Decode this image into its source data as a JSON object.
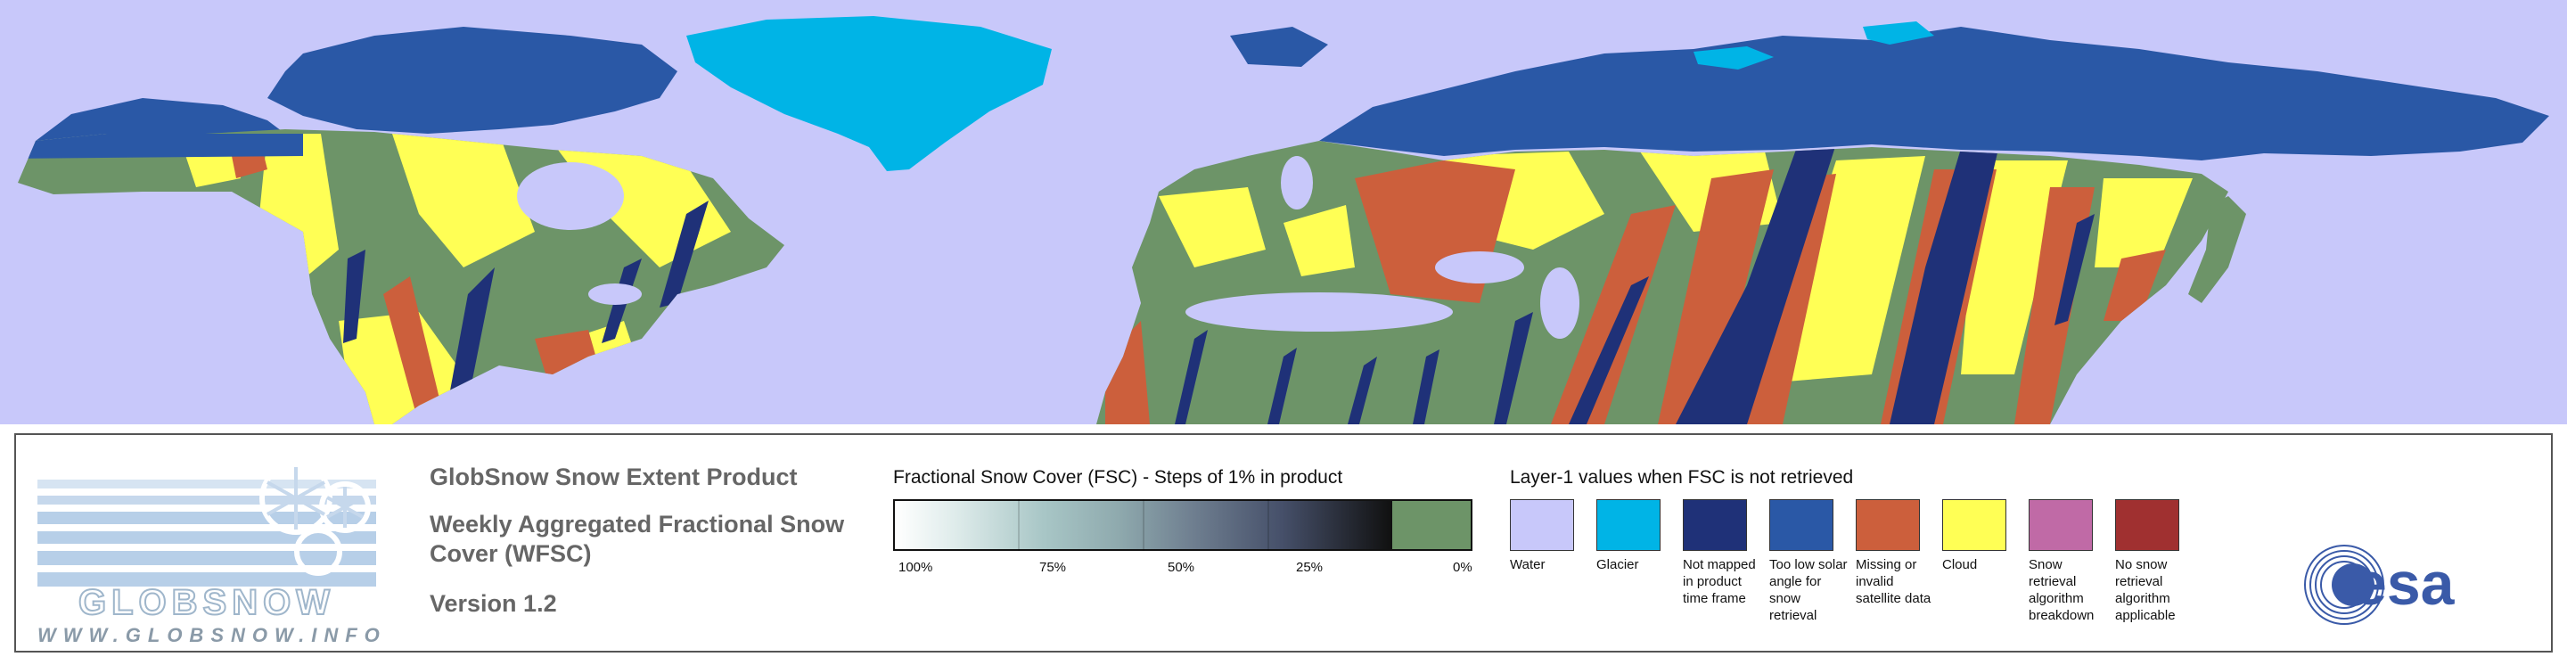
{
  "map": {
    "colors": {
      "water": "#c8c8fa",
      "glacier": "#00b4e6",
      "not_mapped": "#1f3178",
      "low_solar": "#2a58a6",
      "missing": "#cc5f3c",
      "cloud": "#ffff55",
      "breakdown": "#c06aa6",
      "no_snow": "#a03030",
      "snow_free": "#6d9468"
    }
  },
  "legend": {
    "logo": {
      "wordmark": "GLOBSNOW",
      "url": "WWW.GLOBSNOW.INFO"
    },
    "title": {
      "product": "GlobSnow Snow Extent Product",
      "weekly": "Weekly Aggregated Fractional Snow Cover (WFSC)",
      "version": "Version 1.2"
    },
    "fsc": {
      "title": "Fractional Snow Cover (FSC) - Steps of 1% in product",
      "labels": [
        "100%",
        "75%",
        "50%",
        "25%",
        "0%"
      ]
    },
    "layer1": {
      "title": "Layer-1 values when FSC is not retrieved",
      "items": [
        {
          "label": "Water",
          "color": "#c8c8fa"
        },
        {
          "label": "Glacier",
          "color": "#00b4e6"
        },
        {
          "label": "Not mapped in product time frame",
          "color": "#1f3178"
        },
        {
          "label": "Too low solar angle for snow retrieval",
          "color": "#2a58a6"
        },
        {
          "label": "Missing or invalid satellite data",
          "color": "#cc5f3c"
        },
        {
          "label": "Cloud",
          "color": "#ffff55"
        },
        {
          "label": "Snow retrieval algorithm breakdown",
          "color": "#c06aa6"
        },
        {
          "label": "No snow retrieval algorithm applicable",
          "color": "#a03030"
        }
      ]
    },
    "esa_logo": "esa"
  }
}
